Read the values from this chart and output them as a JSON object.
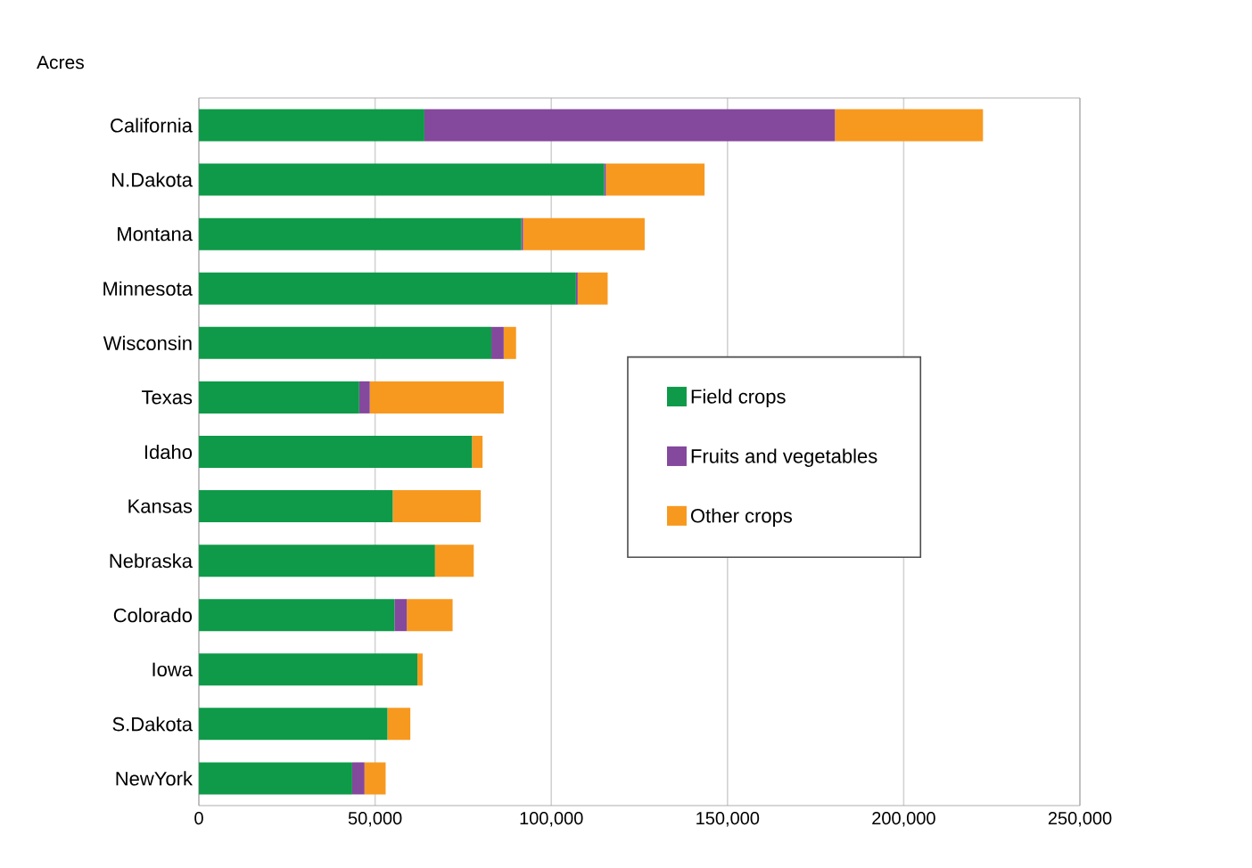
{
  "chart_data": {
    "type": "bar",
    "orientation": "horizontal",
    "stacked": true,
    "ylabel": "Acres",
    "categories": [
      "California",
      "N.Dakota",
      "Montana",
      "Minnesota",
      "Wisconsin",
      "Texas",
      "Idaho",
      "Kansas",
      "Nebraska",
      "Colorado",
      "Iowa",
      "S.Dakota",
      "NewYork"
    ],
    "series": [
      {
        "name": "Field crops",
        "color": "#0e9a48",
        "values": [
          64000,
          115000,
          91500,
          107000,
          83000,
          45500,
          77500,
          55000,
          67000,
          55500,
          62000,
          53500,
          43500
        ]
      },
      {
        "name": "Fruits and vegetables",
        "color": "#84489c",
        "values": [
          116500,
          500,
          500,
          500,
          3500,
          3000,
          0,
          0,
          0,
          3500,
          0,
          0,
          3500
        ]
      },
      {
        "name": "Other crops",
        "color": "#f7991f",
        "values": [
          42000,
          28000,
          34500,
          8500,
          3500,
          38000,
          3000,
          25000,
          11000,
          13000,
          1500,
          6500,
          6000
        ]
      }
    ],
    "xlim": [
      0,
      250000
    ],
    "xticks": [
      0,
      {
        "value": 50000,
        "label": "50,000"
      },
      {
        "value": 100000,
        "label": "100,000"
      },
      {
        "value": 150000,
        "label": "150,000"
      },
      {
        "value": 200000,
        "label": "200,000"
      },
      {
        "value": 250000,
        "label": "250,000"
      }
    ],
    "grid": "x",
    "legend": "right"
  }
}
